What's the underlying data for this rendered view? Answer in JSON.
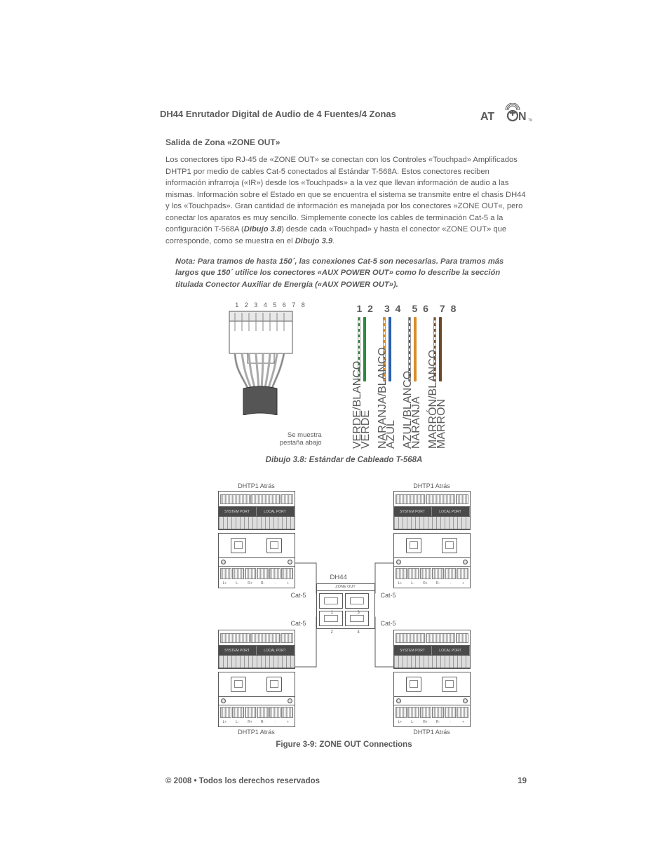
{
  "header": {
    "title": "DH44 Enrutador Digital de Audio de 4 Fuentes/4 Zonas",
    "logo_text": "ATON",
    "logo_color": "#5a5a5a"
  },
  "section": {
    "heading": "Salida de Zona «ZONE OUT»",
    "paragraph_html": "Los conectores tipo RJ-45 de «ZONE OUT» se conectan con los Controles «Touchpad» Amplificados DHTP1 por medio de cables Cat-5 conectados al Estándar T-568A. Estos conectores reciben información infrarroja («IR») desde los «Touchpads»  a la vez que llevan información de audio a las mismas. Información sobre el Estado en que se encuentra el sistema se transmite entre el chasis DH44 y los «Touchpads». Gran cantidad de información es manejada por los conectores »ZONE OUT«, pero conectar los aparatos es muy sencillo. Simplemente conecte los cables de terminación Cat-5 a la configuración T-568A (<b><i>Dibujo 3.8</i></b>) desde cada «Touchpad» y hasta el conector «ZONE OUT» que corresponde, como se muestra en el <b><i>Dibujo 3.9</i></b>.",
    "note": "Nota: Para tramos de hasta 150´, las conexiones Cat-5 son necesarias.  Para tramos más largos que 150´ utilice los conectores «AUX POWER OUT» como lo describe la sección titulada Conector Auxiliar de Energía («AUX POWER OUT»)."
  },
  "fig38": {
    "rj45_pins": "1  2  3  4  5  6  7  8",
    "tab_caption_l1": "Se muestra",
    "tab_caption_l2": "pestaña abajo",
    "pair_numbers": [
      "1 2",
      "3 4",
      "5 6",
      "7 8"
    ],
    "pairs": [
      {
        "striped_color": "#2e8b3d",
        "solid_color": "#2e8b3d",
        "striped_label": "VERDE/BLANCO",
        "solid_label": "VERDE"
      },
      {
        "striped_color": "#d98c2b",
        "solid_color": "#2b5fae",
        "striped_label": "NARANJA/BLANCO",
        "solid_label": "AZUL"
      },
      {
        "striped_color": "#2b5fae",
        "solid_color": "#d98c2b",
        "striped_label": "AZUL/BLANCO",
        "solid_label": "NARANJA"
      },
      {
        "striped_color": "#6b4a2a",
        "solid_color": "#6b4a2a",
        "striped_label": "MARRÓN/BLANCO",
        "solid_label": "MARRÓN"
      }
    ],
    "caption": "Dibujo 3.8: Estándar de Cableado T-568A"
  },
  "fig39": {
    "dhtp_label": "DHTP1 Atrás",
    "dh44_label": "DH44",
    "zone_out_label": "ZONE OUT",
    "cat5_label": "Cat-5",
    "port_system": "SYSTEM PORT",
    "port_local": "LOCAL PORT",
    "port_numbers": [
      "1",
      "3",
      "2",
      "4"
    ],
    "terminal_labels": [
      "L+",
      "L-",
      "R+",
      "R-",
      "-",
      "+"
    ],
    "caption": "Figure 3-9: ZONE OUT Connections"
  },
  "footer": {
    "copyright": "© 2008 • Todos los derechos reservados",
    "page": "19"
  },
  "colors": {
    "text": "#5a5a5a",
    "bg": "#ffffff"
  }
}
